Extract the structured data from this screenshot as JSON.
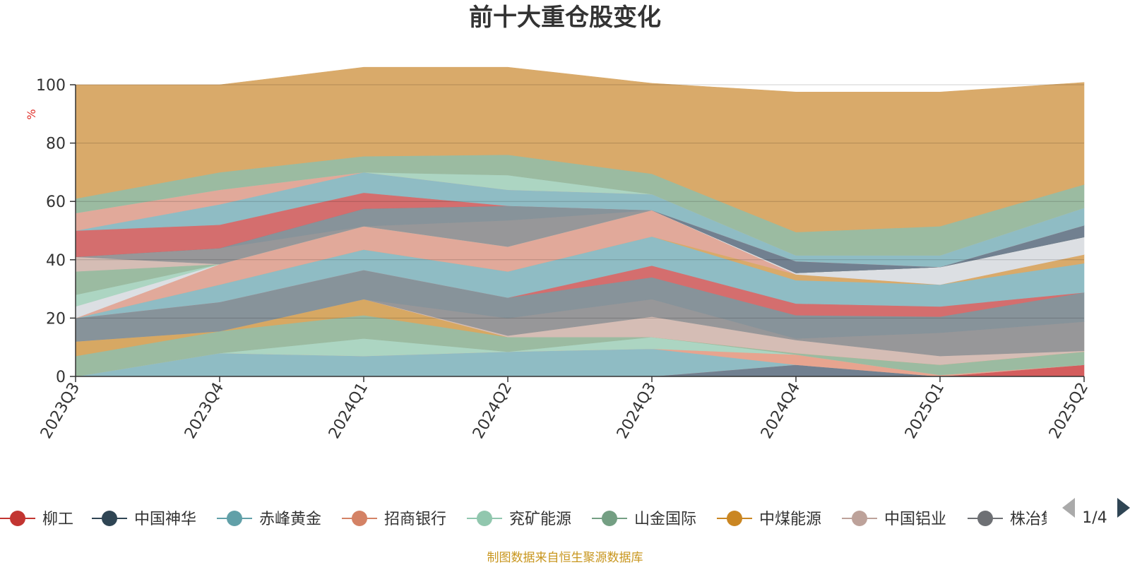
{
  "chart_data": {
    "type": "area",
    "stacked": true,
    "title": "前十大重仓股变化",
    "ylabel": "%",
    "xlabel": "",
    "ylim": [
      0,
      100
    ],
    "yticks": [
      0,
      20,
      40,
      60,
      80,
      100
    ],
    "grid": true,
    "legend_position": "bottom",
    "x": [
      "2023Q3",
      "2023Q4",
      "2024Q1",
      "2024Q2",
      "2024Q3",
      "2024Q4",
      "2025Q1",
      "2025Q2"
    ],
    "layers": [
      {
        "color": "#718090",
        "values": [
          0,
          0,
          0,
          0,
          0,
          4,
          0,
          0
        ]
      },
      {
        "color": "#d45d5d",
        "values": [
          0,
          0,
          0,
          0,
          0,
          0,
          0,
          4
        ]
      },
      {
        "color": "#8fbcc4",
        "values": [
          0,
          8,
          7,
          8.5,
          9.5,
          0,
          0,
          0
        ]
      },
      {
        "color": "#e7a48f",
        "values": [
          0,
          0,
          0,
          0,
          0,
          3.5,
          0.5,
          0
        ]
      },
      {
        "color": "#acd5c2",
        "values": [
          0,
          0,
          6,
          0,
          4,
          0,
          0,
          0
        ]
      },
      {
        "color": "#9bbba1",
        "values": [
          7,
          7.5,
          8,
          5,
          0,
          0.5,
          3.5,
          4.5
        ]
      },
      {
        "color": "#d7a863",
        "values": [
          5,
          0,
          5.5,
          0,
          0,
          0,
          0,
          0
        ]
      },
      {
        "color": "#d5bdb5",
        "values": [
          0,
          0,
          0,
          0.5,
          7,
          4.5,
          3,
          0.3
        ]
      },
      {
        "color": "#979799",
        "values": [
          0,
          0,
          0,
          6,
          6,
          0.5,
          8,
          10
        ]
      },
      {
        "color": "#87939a",
        "values": [
          8,
          10,
          10,
          7,
          7.5,
          8,
          5.5,
          10
        ]
      },
      {
        "color": "#d46e6e",
        "values": [
          0,
          0,
          0,
          0,
          4,
          4,
          3.5,
          0
        ]
      },
      {
        "color": "#8fbcc4",
        "values": [
          0,
          6,
          7,
          9,
          10,
          8,
          7.5,
          10
        ]
      },
      {
        "color": "#d9aa6a",
        "values": [
          0,
          0,
          0,
          0,
          0,
          2,
          0,
          3
        ]
      },
      {
        "color": "#e1a99a",
        "values": [
          0,
          7,
          8,
          8.5,
          9,
          0,
          0,
          0
        ]
      },
      {
        "color": "#dcdfe3",
        "values": [
          4,
          0,
          0,
          0,
          0,
          0.5,
          6,
          6
        ]
      },
      {
        "color": "#acd5c2",
        "values": [
          4,
          0,
          0,
          0,
          0,
          0,
          0,
          0
        ]
      },
      {
        "color": "#9bbba1",
        "values": [
          8,
          0,
          0,
          0,
          0,
          0,
          0,
          0
        ]
      },
      {
        "color": "#d5bdb5",
        "values": [
          5,
          0,
          0,
          0,
          0,
          0,
          0,
          0
        ]
      },
      {
        "color": "#979799",
        "values": [
          0,
          5.5,
          0,
          9,
          0,
          0,
          0,
          0
        ]
      },
      {
        "color": "#87939a",
        "values": [
          0,
          0,
          6,
          5,
          0,
          0,
          0,
          0
        ]
      },
      {
        "color": "#718090",
        "values": [
          0,
          0,
          0,
          0,
          0,
          4,
          0,
          4
        ]
      },
      {
        "color": "#d46e6e",
        "values": [
          9,
          8,
          5.5,
          0,
          0,
          0,
          0,
          0
        ]
      },
      {
        "color": "#8fbcc4",
        "values": [
          0,
          7,
          7,
          5.5,
          5.5,
          2,
          4,
          6
        ]
      },
      {
        "color": "#e1a99a",
        "values": [
          6,
          5,
          0,
          0,
          0,
          0,
          0,
          0
        ]
      },
      {
        "color": "#acd5c2",
        "values": [
          0,
          0,
          0,
          5,
          0,
          0,
          0,
          0
        ]
      },
      {
        "color": "#9bbba1",
        "values": [
          5,
          6,
          5.5,
          7,
          7,
          8,
          10,
          8
        ]
      },
      {
        "color": "#d9aa6a",
        "values": [
          39,
          30,
          30.5,
          30,
          31,
          48,
          46,
          35
        ]
      }
    ],
    "legend": [
      {
        "name": "柳工",
        "color": "#c23531"
      },
      {
        "name": "中国神华",
        "color": "#2f4554"
      },
      {
        "name": "赤峰黄金",
        "color": "#61a0a8"
      },
      {
        "name": "招商银行",
        "color": "#d48265"
      },
      {
        "name": "兖矿能源",
        "color": "#91c7ae"
      },
      {
        "name": "山金国际",
        "color": "#749f83"
      },
      {
        "name": "中煤能源",
        "color": "#ca8622"
      },
      {
        "name": "中国铝业",
        "color": "#bda29a"
      },
      {
        "name": "株冶集",
        "color": "#6e7074"
      }
    ]
  },
  "legend_pager": {
    "text": "1/4"
  },
  "source_note": "制图数据来自恒生聚源数据库"
}
